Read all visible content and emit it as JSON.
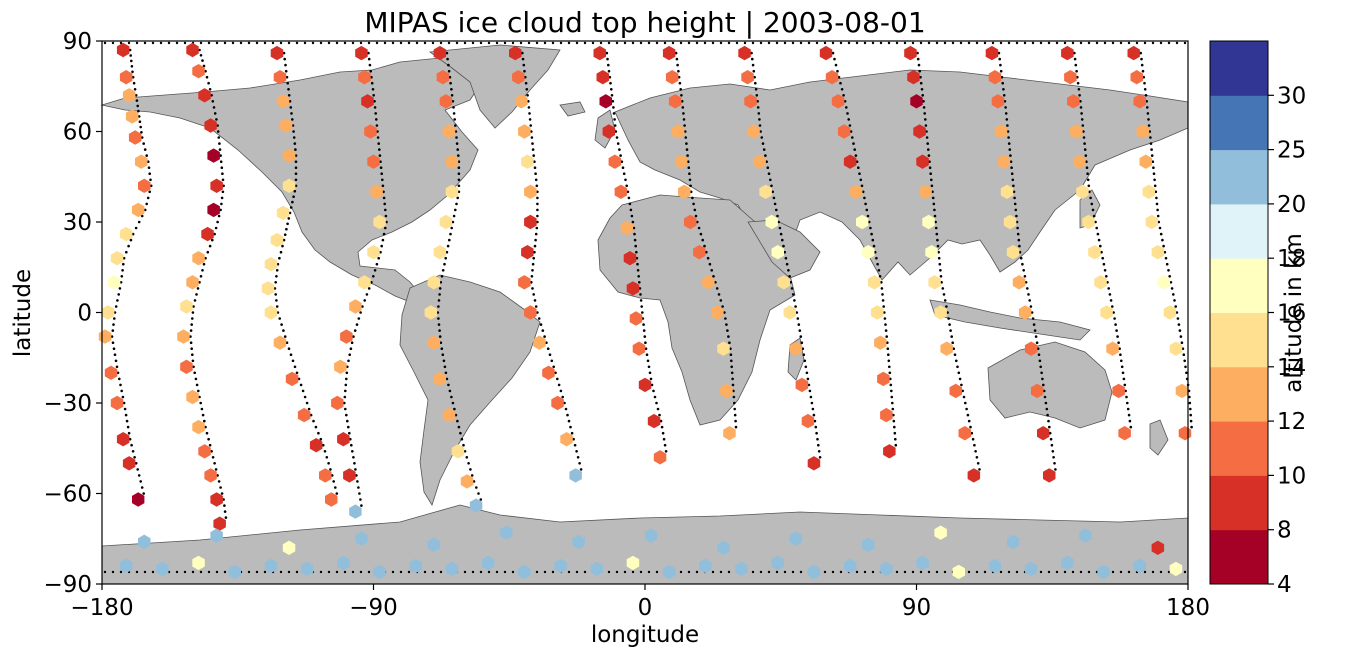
{
  "chart_data": {
    "type": "scatter",
    "title": "MIPAS ice cloud top height | 2003-08-01",
    "xlabel": "longitude",
    "ylabel": "latitude",
    "xlim": [
      -180,
      180
    ],
    "ylim": [
      -90,
      90
    ],
    "xticks": [
      -180,
      -90,
      0,
      90,
      180
    ],
    "yticks": [
      -90,
      -60,
      -30,
      0,
      30,
      60,
      90
    ],
    "marker": "hexagon",
    "basemap": "world land outline (grey)",
    "colorbar": {
      "label": "altitude in km",
      "boundaries": [
        4,
        8,
        10,
        12,
        14,
        16,
        18,
        20,
        25,
        30
      ],
      "colors": [
        "#a50026",
        "#d73027",
        "#f46d43",
        "#fdae61",
        "#fee090",
        "#ffffbf",
        "#e0f3f8",
        "#91bfdb",
        "#4575b4",
        "#313695"
      ]
    },
    "tracks": [
      {
        "x": [
          -173,
          -172,
          -171,
          -170,
          -169,
          -167,
          -166,
          -168,
          -172,
          -175,
          -176,
          -178,
          -179,
          -177,
          -175,
          -173,
          -171,
          -168
        ],
        "y": [
          87,
          78,
          72,
          65,
          58,
          50,
          42,
          34,
          26,
          18,
          10,
          0,
          -8,
          -20,
          -30,
          -42,
          -50,
          -62
        ],
        "z": [
          9,
          11,
          13,
          12,
          11,
          12,
          11,
          13,
          15,
          15,
          17,
          15,
          12,
          11,
          10,
          9,
          8,
          7
        ]
      },
      {
        "x": [
          -150,
          -148,
          -146,
          -144,
          -143,
          -142,
          -143,
          -145,
          -148,
          -150,
          -152,
          -153,
          -152,
          -150,
          -148,
          -146,
          -144,
          -142,
          -141
        ],
        "y": [
          87,
          80,
          72,
          62,
          52,
          42,
          34,
          26,
          18,
          10,
          2,
          -8,
          -18,
          -28,
          -38,
          -46,
          -54,
          -62,
          -70
        ],
        "z": [
          9,
          10,
          9,
          8,
          7,
          8,
          7,
          9,
          12,
          13,
          14,
          12,
          11,
          13,
          12,
          11,
          10,
          9,
          8
        ]
      },
      {
        "x": [
          -122,
          -121,
          -120,
          -119,
          -118,
          -118,
          -120,
          -122,
          -124,
          -125,
          -124,
          -121,
          -117,
          -113,
          -109,
          -106,
          -104
        ],
        "y": [
          86,
          78,
          70,
          62,
          52,
          42,
          33,
          24,
          16,
          8,
          0,
          -10,
          -22,
          -34,
          -44,
          -54,
          -62
        ],
        "z": [
          9,
          11,
          12,
          12,
          13,
          14,
          15,
          14,
          15,
          15,
          14,
          12,
          11,
          10,
          9,
          10,
          11
        ]
      },
      {
        "x": [
          -94,
          -93,
          -92,
          -91,
          -90,
          -89,
          -88,
          -90,
          -93,
          -96,
          -99,
          -101,
          -102,
          -100,
          -98,
          -96
        ],
        "y": [
          86,
          78,
          70,
          60,
          50,
          40,
          30,
          20,
          10,
          2,
          -8,
          -18,
          -30,
          -42,
          -54,
          -66
        ],
        "z": [
          9,
          10,
          9,
          10,
          11,
          12,
          14,
          15,
          14,
          12,
          11,
          12,
          10,
          9,
          8,
          20
        ]
      },
      {
        "x": [
          -68,
          -67,
          -66,
          -65,
          -64,
          -64,
          -66,
          -68,
          -70,
          -71,
          -70,
          -68,
          -65,
          -62,
          -59,
          -56
        ],
        "y": [
          86,
          78,
          70,
          60,
          50,
          40,
          30,
          20,
          10,
          0,
          -10,
          -22,
          -34,
          -46,
          -56,
          -64
        ],
        "z": [
          9,
          10,
          11,
          12,
          12,
          14,
          15,
          15,
          14,
          14,
          13,
          12,
          13,
          14,
          13,
          21
        ]
      },
      {
        "x": [
          -43,
          -42,
          -41,
          -40,
          -39,
          -38,
          -38,
          -39,
          -40,
          -38,
          -35,
          -32,
          -29,
          -26,
          -23
        ],
        "y": [
          86,
          78,
          70,
          60,
          50,
          40,
          30,
          20,
          10,
          0,
          -10,
          -20,
          -30,
          -42,
          -54
        ],
        "z": [
          9,
          11,
          12,
          13,
          14,
          12,
          9,
          8,
          10,
          11,
          12,
          11,
          10,
          12,
          20
        ]
      },
      {
        "x": [
          -15,
          -14,
          -13,
          -12,
          -10,
          -8,
          -6,
          -5,
          -4,
          -3,
          -2,
          0,
          3,
          5
        ],
        "y": [
          86,
          78,
          70,
          60,
          50,
          40,
          28,
          18,
          8,
          -2,
          -12,
          -24,
          -36,
          -48
        ],
        "z": [
          9,
          8,
          7,
          9,
          10,
          11,
          12,
          9,
          8,
          10,
          11,
          9,
          8,
          10
        ]
      },
      {
        "x": [
          8,
          9,
          10,
          11,
          12,
          13,
          15,
          18,
          21,
          24,
          26,
          27,
          28
        ],
        "y": [
          86,
          78,
          70,
          60,
          50,
          40,
          30,
          20,
          10,
          0,
          -12,
          -26,
          -40
        ],
        "z": [
          9,
          10,
          11,
          12,
          13,
          12,
          11,
          10,
          12,
          13,
          14,
          13,
          12
        ]
      },
      {
        "x": [
          33,
          34,
          35,
          36,
          38,
          40,
          42,
          44,
          46,
          48,
          50,
          52,
          54,
          56
        ],
        "y": [
          86,
          78,
          70,
          60,
          50,
          40,
          30,
          20,
          10,
          0,
          -12,
          -24,
          -36,
          -50
        ],
        "z": [
          9,
          10,
          11,
          12,
          13,
          15,
          17,
          16,
          15,
          14,
          12,
          11,
          10,
          9
        ]
      },
      {
        "x": [
          60,
          62,
          64,
          66,
          68,
          70,
          72,
          74,
          76,
          77,
          78,
          79,
          80,
          81
        ],
        "y": [
          86,
          78,
          70,
          60,
          50,
          40,
          30,
          20,
          10,
          0,
          -10,
          -22,
          -34,
          -46
        ],
        "z": [
          9,
          10,
          11,
          10,
          9,
          12,
          17,
          16,
          15,
          14,
          12,
          11,
          10,
          9
        ]
      },
      {
        "x": [
          88,
          89,
          90,
          91,
          92,
          93,
          94,
          95,
          96,
          98,
          100,
          103,
          106,
          109
        ],
        "y": [
          86,
          78,
          70,
          60,
          50,
          40,
          30,
          20,
          10,
          0,
          -12,
          -26,
          -40,
          -54
        ],
        "z": [
          9,
          8,
          7,
          8,
          9,
          12,
          17,
          16,
          15,
          14,
          12,
          11,
          10,
          9
        ]
      },
      {
        "x": [
          115,
          116,
          117,
          118,
          119,
          120,
          121,
          122,
          124,
          126,
          128,
          130,
          132,
          134
        ],
        "y": [
          86,
          78,
          70,
          60,
          50,
          40,
          30,
          20,
          10,
          0,
          -12,
          -26,
          -40,
          -54
        ],
        "z": [
          9,
          10,
          11,
          12,
          13,
          14,
          15,
          14,
          13,
          12,
          11,
          10,
          9,
          8
        ]
      },
      {
        "x": [
          140,
          141,
          142,
          143,
          144,
          145,
          147,
          149,
          151,
          153,
          155,
          157,
          159
        ],
        "y": [
          86,
          78,
          70,
          60,
          50,
          40,
          30,
          20,
          10,
          0,
          -12,
          -26,
          -40
        ],
        "z": [
          9,
          10,
          11,
          12,
          13,
          14,
          15,
          14,
          15,
          14,
          12,
          11,
          10
        ]
      },
      {
        "x": [
          162,
          163,
          164,
          165,
          166,
          167,
          168,
          170,
          172,
          174,
          176,
          178,
          179
        ],
        "y": [
          86,
          78,
          70,
          60,
          50,
          40,
          30,
          20,
          10,
          0,
          -12,
          -26,
          -40
        ],
        "z": [
          9,
          10,
          11,
          12,
          13,
          14,
          15,
          15,
          16,
          15,
          14,
          12,
          11
        ]
      }
    ],
    "antarctic_points": {
      "x": [
        -172,
        -160,
        -148,
        -136,
        -124,
        -112,
        -100,
        -88,
        -76,
        -64,
        -52,
        -40,
        -28,
        -16,
        -4,
        8,
        20,
        32,
        44,
        56,
        68,
        80,
        92,
        104,
        116,
        128,
        140,
        152,
        164,
        176,
        -166,
        -142,
        -118,
        -94,
        -70,
        -46,
        -22,
        2,
        26,
        50,
        74,
        98,
        122,
        146,
        170
      ],
      "y": [
        -84,
        -85,
        -83,
        -86,
        -84,
        -85,
        -83,
        -86,
        -84,
        -85,
        -83,
        -86,
        -84,
        -85,
        -83,
        -86,
        -84,
        -85,
        -83,
        -86,
        -84,
        -85,
        -83,
        -86,
        -84,
        -85,
        -83,
        -86,
        -84,
        -85,
        -76,
        -74,
        -78,
        -75,
        -77,
        -73,
        -76,
        -74,
        -78,
        -75,
        -77,
        -73,
        -76,
        -74,
        -78
      ],
      "z": [
        21,
        22,
        17,
        21,
        22,
        21,
        23,
        22,
        21,
        22,
        21,
        22,
        21,
        22,
        17,
        21,
        22,
        21,
        22,
        21,
        22,
        21,
        22,
        17,
        21,
        22,
        21,
        22,
        21,
        17,
        22,
        21,
        17,
        22,
        21,
        22,
        21,
        22,
        21,
        22,
        21,
        17,
        22,
        21,
        8
      ]
    }
  }
}
